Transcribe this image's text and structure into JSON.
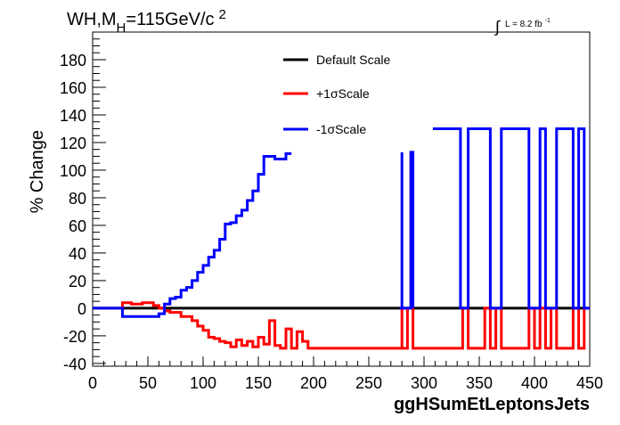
{
  "title_parts": {
    "main": "WH,M",
    "sub": "H",
    "rest": "=115GeV/c",
    "sup": "2"
  },
  "lumi_parts": {
    "integral": "∫",
    "text": "L = 8.2 fb",
    "sup": "-1"
  },
  "chart_data": {
    "type": "line",
    "title": "WH,MH=115GeV/c2",
    "xlabel": "ggHSumEtLeptonsJets",
    "ylabel": "% Change",
    "xlim": [
      0,
      450
    ],
    "ylim": [
      -42,
      200
    ],
    "x_ticks": [
      0,
      50,
      100,
      150,
      200,
      250,
      300,
      350,
      400,
      450
    ],
    "y_ticks": [
      -40,
      -20,
      0,
      20,
      40,
      60,
      80,
      100,
      120,
      140,
      160,
      180
    ],
    "legend_position": "top-center",
    "series": [
      {
        "name": "Default Scale",
        "color": "#000000",
        "step": true,
        "x": [
          0,
          450
        ],
        "y": [
          0,
          0
        ]
      },
      {
        "name": "+1σScale",
        "color": "#ff0000",
        "step": true,
        "x": [
          0,
          27,
          35,
          45,
          55,
          60,
          65,
          70,
          80,
          90,
          95,
          100,
          105,
          110,
          115,
          120,
          125,
          130,
          135,
          140,
          145,
          150,
          155,
          160,
          165,
          170,
          175,
          180,
          185,
          190,
          195,
          200,
          210,
          280,
          280,
          285,
          290,
          335,
          340,
          355,
          360,
          365,
          370,
          395,
          400,
          405,
          410,
          415,
          420,
          435,
          440,
          445,
          450
        ],
        "y": [
          0,
          4,
          3,
          4,
          2,
          0,
          -2,
          -3,
          -6,
          -9,
          -13,
          -16,
          -21,
          -22,
          -24,
          -25,
          -28,
          -23,
          -27,
          -24,
          -28,
          -21,
          -26,
          -9,
          -27,
          -29,
          -15,
          -29,
          -17,
          -24,
          -29,
          -29,
          -29,
          0,
          -29,
          0,
          -29,
          0,
          -29,
          0,
          -29,
          0,
          -29,
          0,
          -29,
          0,
          -29,
          0,
          -29,
          0,
          -29,
          0,
          0
        ]
      },
      {
        "name": "-1σScale",
        "color": "#0000ff",
        "step": true,
        "x": [
          0,
          27,
          35,
          45,
          55,
          60,
          65,
          70,
          75,
          80,
          85,
          90,
          95,
          100,
          105,
          110,
          115,
          120,
          125,
          130,
          135,
          140,
          145,
          150,
          155,
          160,
          165,
          170,
          175,
          180
        ],
        "y": [
          0,
          -6,
          -6,
          -6,
          -6,
          -4,
          3,
          7,
          8,
          13,
          15,
          20,
          26,
          31,
          37,
          42,
          50,
          61,
          62,
          67,
          71,
          78,
          85,
          97,
          110,
          110,
          108,
          108,
          112,
          112
        ]
      },
      {
        "name": "-1σScale",
        "color": "#0000ff",
        "step": true,
        "x": [
          278,
          280,
          280,
          285,
          288,
          290
        ],
        "y": [
          0,
          113,
          0,
          0,
          113,
          0
        ]
      },
      {
        "name": "-1σScale",
        "color": "#0000ff",
        "step": true,
        "x": [
          308,
          333,
          340,
          355,
          360,
          365,
          370,
          395,
          400,
          405,
          410,
          415,
          420,
          435,
          440,
          445,
          450
        ],
        "y": [
          130,
          0,
          130,
          130,
          0,
          0,
          130,
          0,
          0,
          130,
          0,
          0,
          130,
          0,
          130,
          0,
          0
        ]
      }
    ]
  }
}
